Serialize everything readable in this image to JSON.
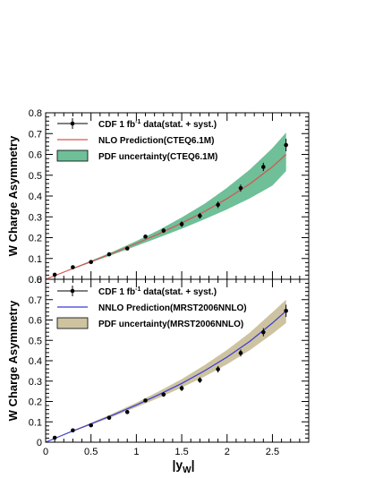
{
  "figure": {
    "xlabel_main": "|y",
    "xlabel_sub": "W",
    "xlabel_close": "|"
  },
  "chart_data": [
    {
      "type": "line",
      "ylabel": "W Charge Asymmetry",
      "xlim": [
        0,
        2.9
      ],
      "ylim": [
        0,
        0.8
      ],
      "x_ticks": [
        0,
        0.5,
        1,
        1.5,
        2,
        2.5
      ],
      "x_tick_labels": [
        "",
        "",
        "",
        "",
        "",
        ""
      ],
      "y_ticks": [
        0,
        0.1,
        0.2,
        0.3,
        0.4,
        0.5,
        0.6,
        0.7,
        0.8
      ],
      "y_tick_labels": [
        "0",
        "0.1",
        "0.2",
        "0.3",
        "0.4",
        "0.5",
        "0.6",
        "0.7",
        "0.8"
      ],
      "data_series": {
        "name": "CDF 1 fb",
        "name_sup": "-1",
        "name_rest": " data(stat. + syst.)",
        "color": "#000000",
        "points": [
          {
            "x": 0.1,
            "y": 0.022,
            "err": 0.006
          },
          {
            "x": 0.3,
            "y": 0.058,
            "err": 0.006
          },
          {
            "x": 0.5,
            "y": 0.083,
            "err": 0.006
          },
          {
            "x": 0.7,
            "y": 0.12,
            "err": 0.007
          },
          {
            "x": 0.9,
            "y": 0.148,
            "err": 0.008
          },
          {
            "x": 1.1,
            "y": 0.205,
            "err": 0.008
          },
          {
            "x": 1.3,
            "y": 0.234,
            "err": 0.011
          },
          {
            "x": 1.5,
            "y": 0.265,
            "err": 0.014
          },
          {
            "x": 1.7,
            "y": 0.305,
            "err": 0.014
          },
          {
            "x": 1.9,
            "y": 0.358,
            "err": 0.016
          },
          {
            "x": 2.15,
            "y": 0.438,
            "err": 0.017
          },
          {
            "x": 2.4,
            "y": 0.54,
            "err": 0.02
          },
          {
            "x": 2.65,
            "y": 0.645,
            "err": 0.03
          }
        ]
      },
      "curve": {
        "name": "NLO Prediction(CTEQ6.1M)",
        "color": "#d9534f",
        "x": [
          0.0,
          0.25,
          0.5,
          0.75,
          1.0,
          1.25,
          1.5,
          1.75,
          2.0,
          2.25,
          2.5,
          2.65
        ],
        "y": [
          0.0,
          0.043,
          0.085,
          0.127,
          0.172,
          0.219,
          0.27,
          0.325,
          0.388,
          0.458,
          0.54,
          0.6
        ]
      },
      "band": {
        "name": "PDF uncertainty(CTEQ6.1M)",
        "color": "#6fbf98",
        "x": [
          0.0,
          0.25,
          0.5,
          0.75,
          1.0,
          1.25,
          1.5,
          1.75,
          2.0,
          2.25,
          2.5,
          2.65
        ],
        "lower": [
          0.0,
          0.041,
          0.081,
          0.12,
          0.16,
          0.201,
          0.243,
          0.288,
          0.336,
          0.389,
          0.45,
          0.52
        ],
        "upper": [
          0.0,
          0.045,
          0.089,
          0.134,
          0.184,
          0.237,
          0.297,
          0.362,
          0.44,
          0.527,
          0.63,
          0.705
        ]
      }
    },
    {
      "type": "line",
      "ylabel": "W Charge Asymmetry",
      "xlim": [
        0,
        2.9
      ],
      "ylim": [
        0,
        0.8
      ],
      "x_ticks": [
        0,
        0.5,
        1,
        1.5,
        2,
        2.5
      ],
      "x_tick_labels": [
        "0",
        "0.5",
        "1",
        "1.5",
        "2",
        "2.5"
      ],
      "y_ticks": [
        0,
        0.1,
        0.2,
        0.3,
        0.4,
        0.5,
        0.6,
        0.7,
        0.8
      ],
      "y_tick_labels": [
        "0",
        "0.1",
        "0.2",
        "0.3",
        "0.4",
        "0.5",
        "0.6",
        "0.7",
        "0.8"
      ],
      "data_series": {
        "name": "CDF 1 fb",
        "name_sup": "-1",
        "name_rest": " data(stat. + syst.)",
        "color": "#000000",
        "points": [
          {
            "x": 0.1,
            "y": 0.022,
            "err": 0.006
          },
          {
            "x": 0.3,
            "y": 0.058,
            "err": 0.006
          },
          {
            "x": 0.5,
            "y": 0.083,
            "err": 0.006
          },
          {
            "x": 0.7,
            "y": 0.12,
            "err": 0.007
          },
          {
            "x": 0.9,
            "y": 0.148,
            "err": 0.008
          },
          {
            "x": 1.1,
            "y": 0.205,
            "err": 0.008
          },
          {
            "x": 1.3,
            "y": 0.234,
            "err": 0.011
          },
          {
            "x": 1.5,
            "y": 0.265,
            "err": 0.014
          },
          {
            "x": 1.7,
            "y": 0.305,
            "err": 0.014
          },
          {
            "x": 1.9,
            "y": 0.358,
            "err": 0.016
          },
          {
            "x": 2.15,
            "y": 0.438,
            "err": 0.017
          },
          {
            "x": 2.4,
            "y": 0.54,
            "err": 0.02
          },
          {
            "x": 2.65,
            "y": 0.645,
            "err": 0.03
          }
        ]
      },
      "curve": {
        "name": "NNLO Prediction(MRST2006NNLO)",
        "color": "#3b3bd6",
        "x": [
          0.0,
          0.25,
          0.5,
          0.75,
          1.0,
          1.25,
          1.5,
          1.75,
          2.0,
          2.25,
          2.5,
          2.65
        ],
        "y": [
          0.0,
          0.046,
          0.09,
          0.135,
          0.183,
          0.234,
          0.289,
          0.35,
          0.418,
          0.495,
          0.585,
          0.645
        ]
      },
      "band": {
        "name": "PDF uncertainty(MRST2006NNLO)",
        "color": "#cdc3a0",
        "x": [
          0.0,
          0.25,
          0.5,
          0.75,
          1.0,
          1.25,
          1.5,
          1.75,
          2.0,
          2.25,
          2.5,
          2.65
        ],
        "lower": [
          0.0,
          0.043,
          0.085,
          0.127,
          0.172,
          0.218,
          0.268,
          0.322,
          0.383,
          0.452,
          0.532,
          0.585
        ],
        "upper": [
          0.0,
          0.049,
          0.095,
          0.143,
          0.194,
          0.25,
          0.31,
          0.378,
          0.453,
          0.538,
          0.638,
          0.7
        ]
      }
    }
  ]
}
